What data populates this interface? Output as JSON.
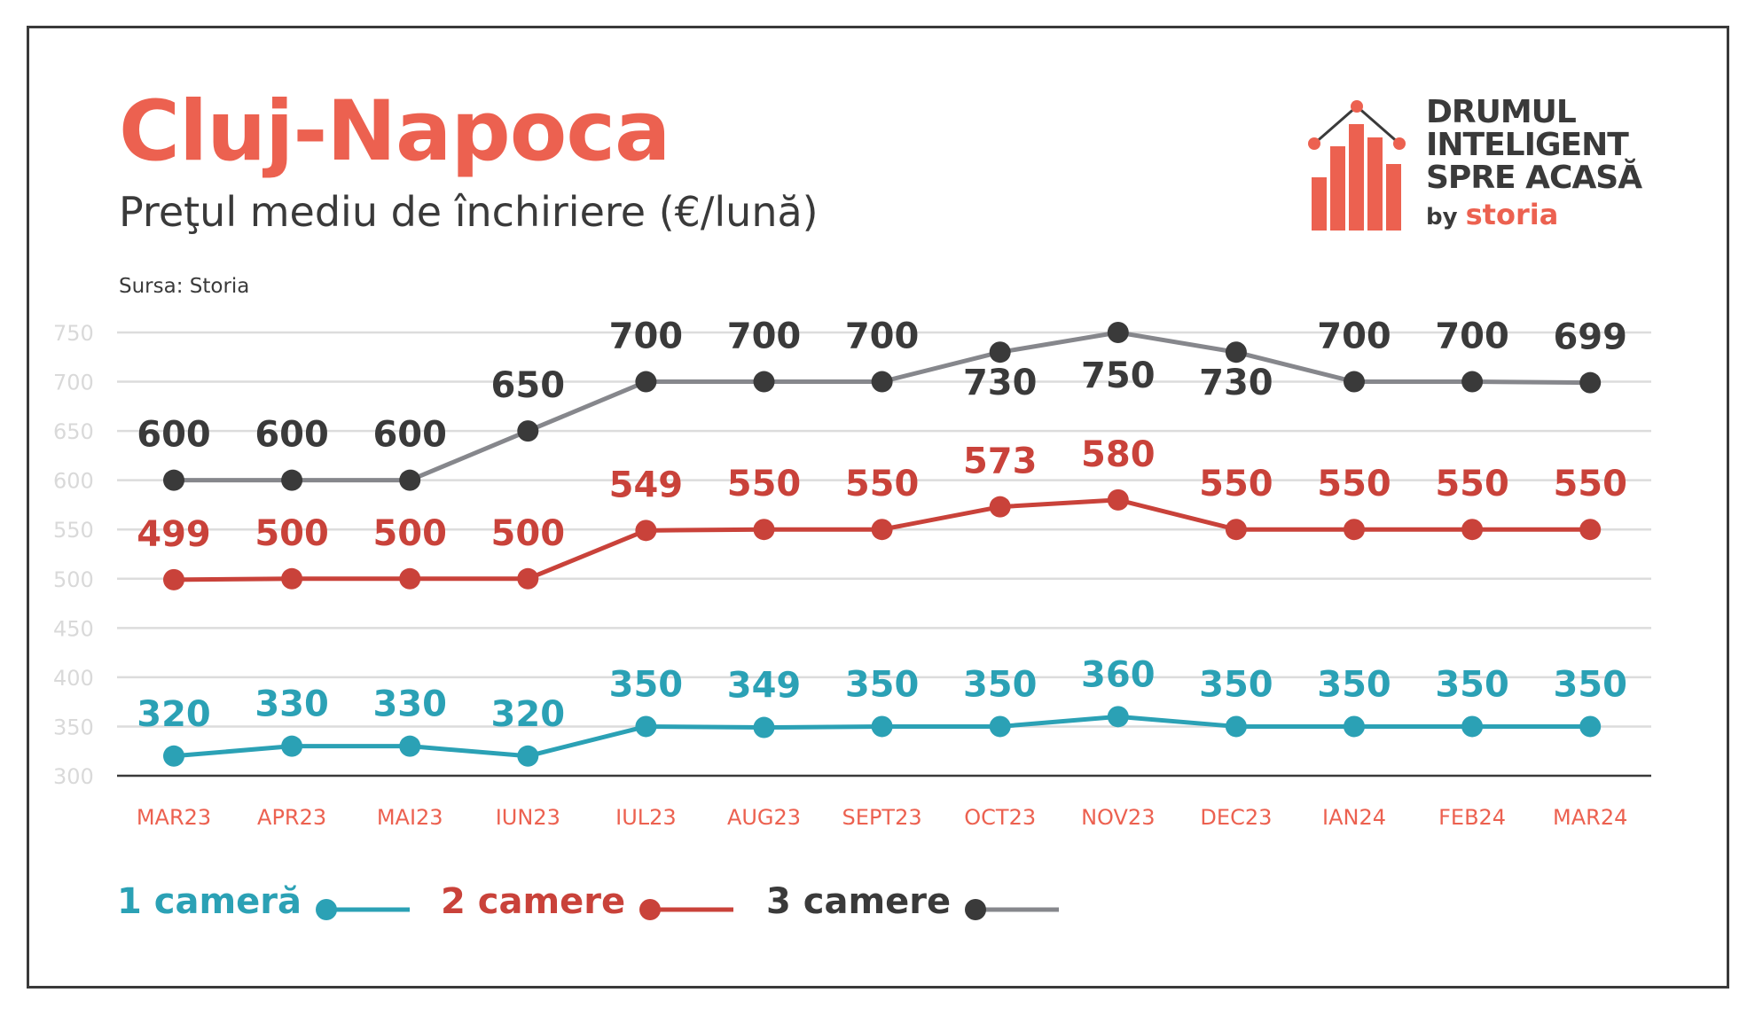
{
  "header": {
    "title": "Cluj-Napoca",
    "subtitle": "Preţul mediu de închiriere (€/lună)",
    "source": "Sursa: Storia"
  },
  "logo": {
    "lines": [
      "DRUMUL",
      "INTELIGENT",
      "SPRE ACASĂ"
    ],
    "by": "by",
    "brand": "storia"
  },
  "colors": {
    "accent": "#ec6150",
    "one_room": "#2ba1b5",
    "two_rooms": "#c9423a",
    "three_rooms_line": "#86878c",
    "three_rooms_marker": "#3a3a3a",
    "axis_text": "#d9d9d9",
    "category_text": "#ec6150",
    "grid": "#dcdcdc"
  },
  "chart_data": {
    "type": "line",
    "categories": [
      "MAR23",
      "APR23",
      "MAI23",
      "IUN23",
      "IUL23",
      "AUG23",
      "SEPT23",
      "OCT23",
      "NOV23",
      "DEC23",
      "IAN24",
      "FEB24",
      "MAR24"
    ],
    "ylim": [
      300,
      750
    ],
    "yticks": [
      300,
      350,
      400,
      450,
      500,
      550,
      600,
      650,
      700,
      750
    ],
    "grid": true,
    "legend_position": "bottom-left",
    "series": [
      {
        "name": "1 cameră",
        "color": "#2ba1b5",
        "marker": "#2ba1b5",
        "values": [
          320,
          330,
          330,
          320,
          350,
          349,
          350,
          350,
          360,
          350,
          350,
          350,
          350
        ]
      },
      {
        "name": "2 camere",
        "color": "#c9423a",
        "marker": "#c9423a",
        "values": [
          499,
          500,
          500,
          500,
          549,
          550,
          550,
          573,
          580,
          550,
          550,
          550,
          550
        ]
      },
      {
        "name": "3 camere",
        "color": "#86878c",
        "marker": "#3a3a3a",
        "values": [
          600,
          600,
          600,
          650,
          700,
          700,
          700,
          730,
          750,
          730,
          700,
          700,
          699
        ]
      }
    ]
  }
}
